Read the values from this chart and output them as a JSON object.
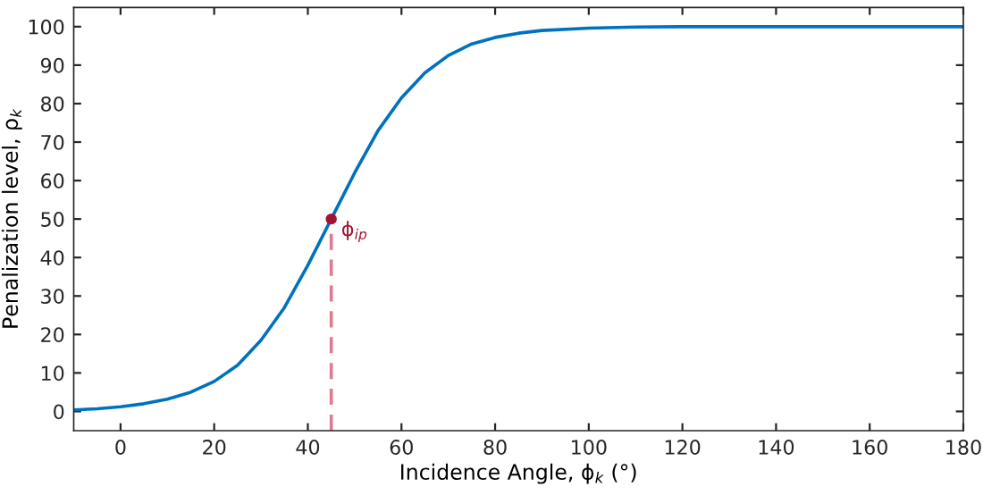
{
  "chart_data": {
    "type": "line",
    "xlabel": "Incidence Angle, ϕ$_{k}$ (°)",
    "ylabel": "Penalization level, ρ$_{k}$",
    "xlim": [
      -10,
      180
    ],
    "ylim": [
      -5,
      105
    ],
    "xticks": [
      0,
      20,
      40,
      60,
      80,
      100,
      120,
      140,
      160,
      180
    ],
    "yticks": [
      0,
      10,
      20,
      30,
      40,
      50,
      60,
      70,
      80,
      90,
      100
    ],
    "grid": false,
    "series": [
      {
        "color": "#0072bd",
        "x": [
          -10,
          -5,
          0,
          5,
          10,
          15,
          20,
          25,
          30,
          35,
          40,
          45,
          50,
          55,
          60,
          65,
          70,
          75,
          80,
          85,
          90,
          100,
          110,
          120,
          140,
          160,
          180
        ],
        "values": [
          0.4,
          0.7,
          1.2,
          2,
          3.2,
          5,
          7.8,
          12,
          18.5,
          27,
          38,
          50,
          62,
          73,
          81.5,
          88,
          92.5,
          95.5,
          97.2,
          98.3,
          99,
          99.6,
          99.9,
          100,
          100,
          100,
          100
        ]
      },
      {
        "type": "line",
        "color": "#e07a8e",
        "line_style": "dashed",
        "x": [
          45,
          45
        ],
        "values": [
          -5,
          50
        ]
      },
      {
        "type": "scatter",
        "color": "#a2142f",
        "marker": "circle",
        "x": [
          45
        ],
        "values": [
          50
        ]
      }
    ],
    "annotations": [
      {
        "text": "ϕ$_{ip}$",
        "x": 45,
        "y": 50
      }
    ]
  }
}
